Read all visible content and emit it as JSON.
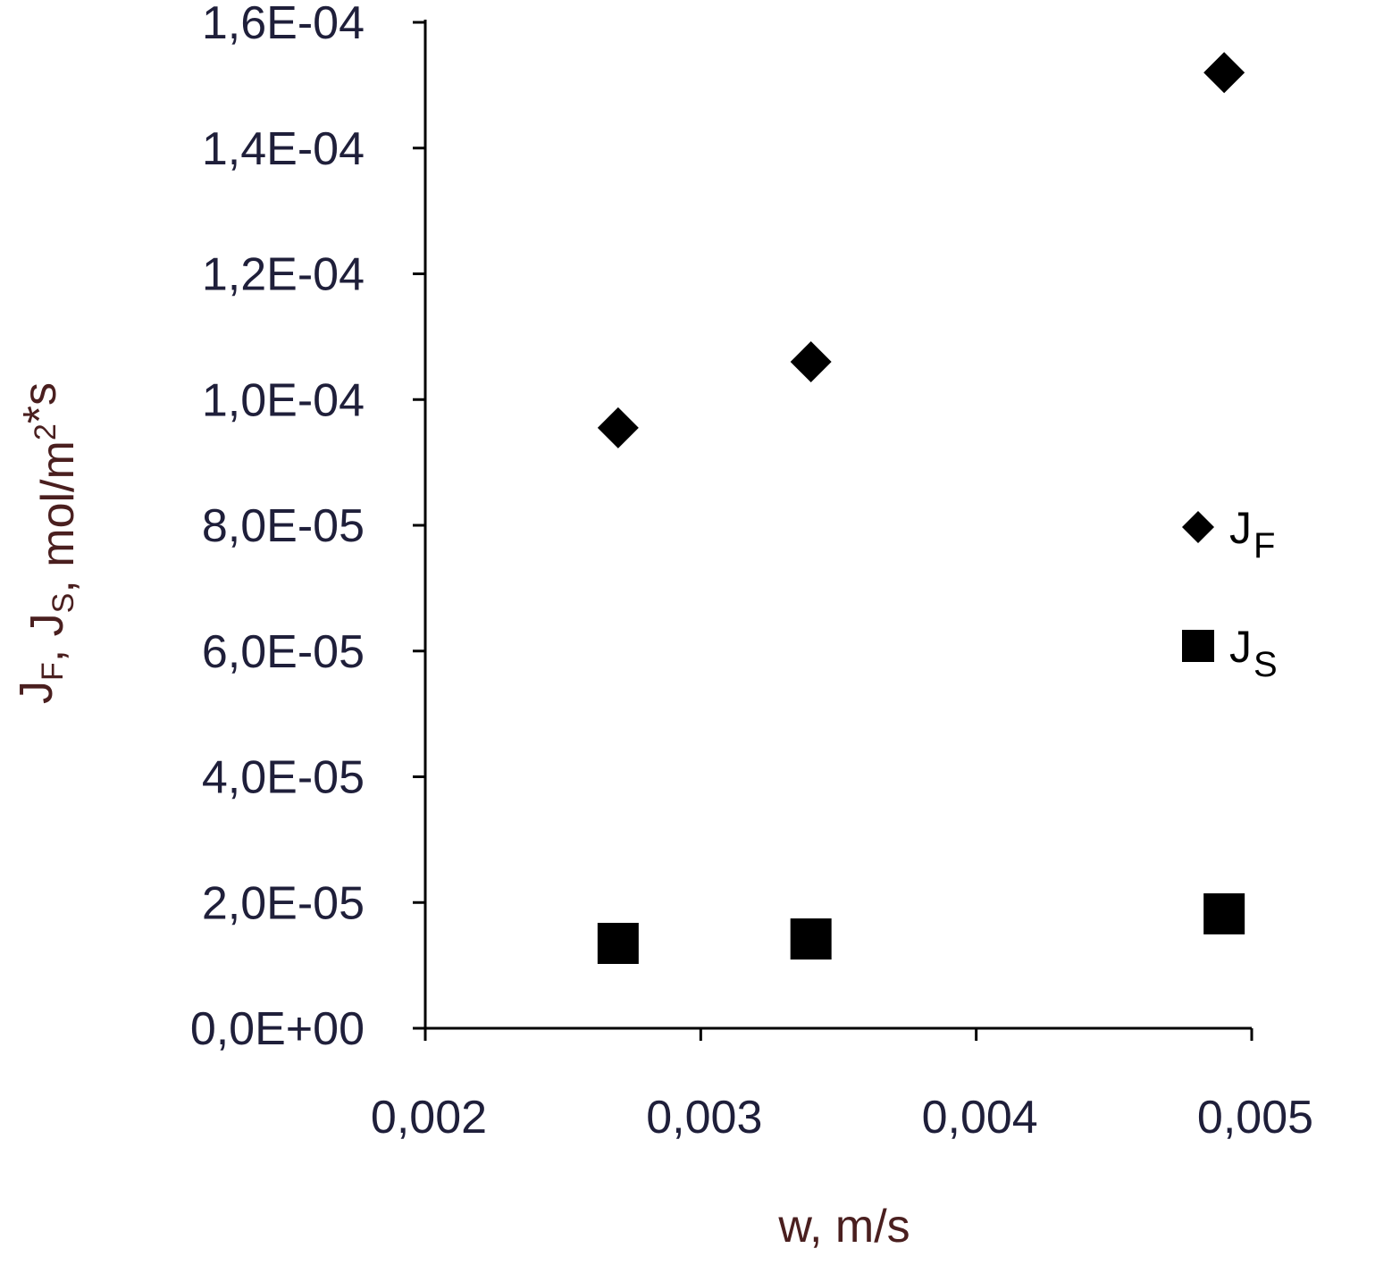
{
  "chart_data": {
    "type": "scatter",
    "title": "",
    "xlabel": "w, m/s",
    "ylabel": {
      "parts": [
        {
          "text": "J",
          "sub": "F"
        },
        {
          "text": ", J",
          "sub": "S"
        },
        {
          "text": ", mol/m",
          "sup": "2"
        },
        {
          "text": "*s"
        }
      ]
    },
    "xlim": [
      0.002,
      0.005
    ],
    "ylim": [
      0,
      0.00016
    ],
    "x_ticks": [
      0.002,
      0.003,
      0.004,
      0.005
    ],
    "x_tick_labels": [
      "0,002",
      "0,003",
      "0,004",
      "0,005"
    ],
    "y_ticks": [
      0,
      2e-05,
      4e-05,
      6e-05,
      8e-05,
      0.0001,
      0.00012,
      0.00014,
      0.00016
    ],
    "y_tick_labels": [
      "0,0E+00",
      "2,0E-05",
      "4,0E-05",
      "6,0E-05",
      "8,0E-05",
      "1,0E-04",
      "1,2E-04",
      "1,4E-04",
      "1,6E-04"
    ],
    "grid": false,
    "legend_position": "right",
    "series": [
      {
        "name": "J",
        "name_sub": "F",
        "marker": "diamond",
        "color": "#000000",
        "x": [
          0.0027,
          0.0034,
          0.0049
        ],
        "y": [
          9.55e-05,
          0.000106,
          0.000152
        ]
      },
      {
        "name": "J",
        "name_sub": "S",
        "marker": "square",
        "color": "#000000",
        "x": [
          0.0027,
          0.0034,
          0.0049
        ],
        "y": [
          1.35e-05,
          1.42e-05,
          1.82e-05
        ]
      }
    ],
    "colors": {
      "tick_text": "#1f1f3a",
      "axis_title": "#4a1f1f",
      "axis_line": "#000000"
    }
  }
}
